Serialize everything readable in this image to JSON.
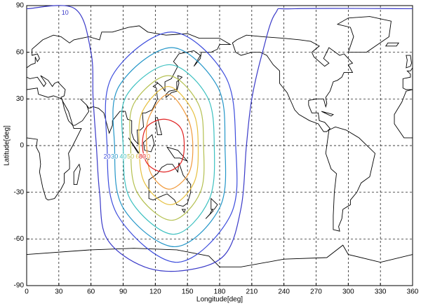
{
  "chart_data": {
    "type": "contour",
    "x_label": "Longitude[deg]",
    "y_label": "Latitude[deg]",
    "xlim": [
      0,
      360
    ],
    "ylim": [
      -90,
      90
    ],
    "xticks": [
      0,
      30,
      60,
      90,
      120,
      150,
      180,
      210,
      240,
      270,
      300,
      330,
      360
    ],
    "yticks": [
      -90,
      -60,
      -30,
      0,
      30,
      60,
      90
    ],
    "grid": true,
    "contours": [
      {
        "level": 10,
        "color": "#3a3ac8",
        "closed": false,
        "x": [
          0,
          45,
          60,
          62,
          65,
          68,
          75,
          110,
          150,
          185,
          200,
          205,
          210,
          220,
          232,
          250,
          360
        ],
        "y": [
          88,
          88,
          60,
          30,
          0,
          -30,
          -60,
          -78,
          -80,
          -70,
          -40,
          0,
          30,
          60,
          85,
          88,
          88
        ]
      },
      {
        "level": 20,
        "color": "#3c4cdc",
        "closed": true,
        "x": [
          135,
          185,
          195,
          190,
          140,
          85,
          75,
          80
        ],
        "y": [
          73,
          45,
          0,
          -45,
          -75,
          -45,
          0,
          45
        ]
      },
      {
        "level": 30,
        "color": "#2496c8",
        "closed": true,
        "x": [
          135,
          178,
          185,
          180,
          138,
          90,
          82,
          86
        ],
        "y": [
          63,
          38,
          0,
          -40,
          -65,
          -40,
          0,
          38
        ]
      },
      {
        "level": 40,
        "color": "#3cc0c0",
        "closed": true,
        "x": [
          133,
          168,
          175,
          170,
          137,
          97,
          90,
          93
        ],
        "y": [
          52,
          32,
          0,
          -35,
          -57,
          -35,
          0,
          32
        ]
      },
      {
        "level": 50,
        "color": "#b4c050",
        "closed": true,
        "x": [
          132,
          160,
          165,
          162,
          135,
          103,
          97,
          100
        ],
        "y": [
          45,
          27,
          0,
          -30,
          -48,
          -30,
          0,
          27
        ]
      },
      {
        "level": 60,
        "color": "#e6c040",
        "closed": true,
        "x": [
          132,
          155,
          160,
          156,
          134,
          110,
          105,
          108
        ],
        "y": [
          38,
          22,
          0,
          -24,
          -38,
          -24,
          0,
          22
        ]
      },
      {
        "level": 70,
        "color": "#f09a3c",
        "closed": true,
        "x": [
          132,
          150,
          155,
          151,
          133,
          116,
          112,
          114
        ],
        "y": [
          33,
          18,
          0,
          -18,
          -28,
          -18,
          0,
          18
        ]
      },
      {
        "level": 80,
        "color": "#e02020",
        "closed": true,
        "x": [
          128,
          143,
          147,
          143,
          128,
          113,
          108,
          112
        ],
        "y": [
          17,
          12,
          0,
          -12,
          -17,
          -12,
          0,
          12
        ]
      }
    ]
  }
}
